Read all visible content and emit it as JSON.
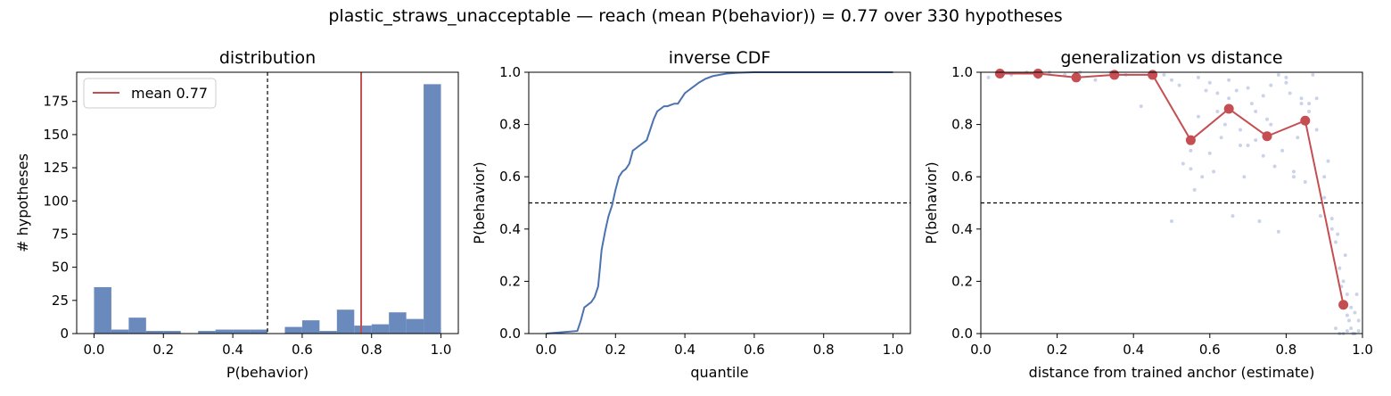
{
  "figure": {
    "suptitle": "plastic_straws_unacceptable  —  reach (mean P(behavior)) = 0.77  over 330 hypotheses"
  },
  "colors": {
    "bar": "#6a89bd",
    "line": "#4c72b0",
    "mean": "#c44e52",
    "scatter": "#b8c4e2",
    "reference": "#000000"
  },
  "chart_data": [
    {
      "type": "bar",
      "title": "distribution",
      "xlabel": "P(behavior)",
      "ylabel": "# hypotheses",
      "xlim": [
        -0.05,
        1.05
      ],
      "ylim": [
        0,
        197
      ],
      "xticks": [
        "0.0",
        "0.2",
        "0.4",
        "0.6",
        "0.8",
        "1.0"
      ],
      "xtick_values": [
        0,
        0.2,
        0.4,
        0.6,
        0.8,
        1.0
      ],
      "yticks": [
        "0",
        "25",
        "50",
        "75",
        "100",
        "125",
        "150",
        "175"
      ],
      "ytick_values": [
        0,
        25,
        50,
        75,
        100,
        125,
        150,
        175
      ],
      "bin_width": 0.05,
      "bin_starts": [
        0.0,
        0.05,
        0.1,
        0.15,
        0.2,
        0.25,
        0.3,
        0.35,
        0.4,
        0.45,
        0.5,
        0.55,
        0.6,
        0.65,
        0.7,
        0.75,
        0.8,
        0.85,
        0.9,
        0.95
      ],
      "values": [
        35,
        3,
        12,
        2,
        2,
        0,
        2,
        3,
        3,
        3,
        0,
        5,
        10,
        2,
        18,
        6,
        7,
        16,
        11,
        188
      ],
      "mean": 0.77,
      "mean_label": "mean 0.77",
      "threshold": 0.5,
      "legend_position": "upper left",
      "grid": false
    },
    {
      "type": "line",
      "title": "inverse CDF",
      "xlabel": "quantile",
      "ylabel": "P(behavior)",
      "xlim": [
        -0.05,
        1.05
      ],
      "ylim": [
        0,
        1
      ],
      "xticks": [
        "0.0",
        "0.2",
        "0.4",
        "0.6",
        "0.8",
        "1.0"
      ],
      "xtick_values": [
        0,
        0.2,
        0.4,
        0.6,
        0.8,
        1.0
      ],
      "yticks": [
        "0.0",
        "0.2",
        "0.4",
        "0.6",
        "0.8",
        "1.0"
      ],
      "ytick_values": [
        0,
        0.2,
        0.4,
        0.6,
        0.8,
        1.0
      ],
      "x": [
        0.0,
        0.09,
        0.1,
        0.11,
        0.12,
        0.13,
        0.14,
        0.15,
        0.155,
        0.16,
        0.17,
        0.175,
        0.18,
        0.19,
        0.2,
        0.21,
        0.22,
        0.23,
        0.24,
        0.25,
        0.26,
        0.27,
        0.28,
        0.29,
        0.3,
        0.31,
        0.32,
        0.33,
        0.34,
        0.35,
        0.36,
        0.37,
        0.38,
        0.39,
        0.4,
        0.41,
        0.42,
        0.43,
        0.44,
        0.46,
        0.48,
        0.5,
        0.52,
        0.55,
        0.6,
        0.7,
        0.8,
        0.9,
        1.0
      ],
      "y": [
        0.0,
        0.01,
        0.05,
        0.1,
        0.11,
        0.12,
        0.14,
        0.18,
        0.25,
        0.32,
        0.39,
        0.42,
        0.45,
        0.49,
        0.55,
        0.6,
        0.62,
        0.63,
        0.65,
        0.7,
        0.71,
        0.72,
        0.73,
        0.74,
        0.78,
        0.82,
        0.85,
        0.86,
        0.87,
        0.87,
        0.875,
        0.88,
        0.88,
        0.9,
        0.92,
        0.93,
        0.94,
        0.95,
        0.96,
        0.975,
        0.985,
        0.99,
        0.995,
        0.998,
        1.0,
        1.0,
        1.0,
        1.0,
        1.0
      ],
      "threshold": 0.5,
      "grid": false
    },
    {
      "type": "scatter",
      "title": "generalization vs distance",
      "xlabel": "distance from trained anchor (estimate)",
      "ylabel": "P(behavior)",
      "xlim": [
        0,
        1
      ],
      "ylim": [
        0,
        1
      ],
      "xticks": [
        "0.0",
        "0.2",
        "0.4",
        "0.6",
        "0.8",
        "1.0"
      ],
      "xtick_values": [
        0,
        0.2,
        0.4,
        0.6,
        0.8,
        1.0
      ],
      "yticks": [
        "0.0",
        "0.2",
        "0.4",
        "0.6",
        "0.8",
        "1.0"
      ],
      "ytick_values": [
        0,
        0.2,
        0.4,
        0.6,
        0.8,
        1.0
      ],
      "binned_means": {
        "x": [
          0.05,
          0.15,
          0.25,
          0.35,
          0.45,
          0.55,
          0.65,
          0.75,
          0.85,
          0.95
        ],
        "y": [
          0.995,
          0.995,
          0.98,
          0.99,
          0.99,
          0.74,
          0.86,
          0.755,
          0.815,
          0.11
        ]
      },
      "points": {
        "x": [
          0.02,
          0.05,
          0.08,
          0.12,
          0.15,
          0.18,
          0.22,
          0.26,
          0.3,
          0.34,
          0.38,
          0.42,
          0.45,
          0.48,
          0.5,
          0.52,
          0.53,
          0.55,
          0.56,
          0.57,
          0.58,
          0.6,
          0.61,
          0.62,
          0.63,
          0.64,
          0.65,
          0.66,
          0.67,
          0.68,
          0.69,
          0.7,
          0.71,
          0.72,
          0.73,
          0.74,
          0.75,
          0.76,
          0.77,
          0.78,
          0.79,
          0.8,
          0.81,
          0.82,
          0.83,
          0.84,
          0.85,
          0.86,
          0.87,
          0.88,
          0.89,
          0.9,
          0.91,
          0.92,
          0.93,
          0.94,
          0.95,
          0.96,
          0.97,
          0.98,
          0.99,
          0.93,
          0.94,
          0.95,
          0.96,
          0.97,
          0.98,
          0.95,
          0.96,
          0.92,
          0.945,
          0.955,
          0.965,
          0.975,
          0.935,
          0.985,
          0.57,
          0.59,
          0.62,
          0.65,
          0.7,
          0.74,
          0.78,
          0.8,
          0.84,
          0.88,
          0.5,
          0.55,
          0.6,
          0.68,
          0.72,
          0.76,
          0.82,
          0.86,
          0.9,
          0.99
        ],
        "y": [
          0.98,
          1.0,
          0.99,
          1.0,
          0.98,
          1.0,
          0.99,
          1.0,
          0.97,
          1.0,
          0.99,
          0.87,
          1.0,
          0.99,
          0.97,
          0.95,
          0.65,
          0.7,
          0.55,
          0.83,
          0.6,
          0.96,
          0.62,
          0.92,
          0.75,
          0.8,
          0.9,
          0.45,
          0.93,
          0.78,
          0.6,
          0.72,
          0.88,
          0.85,
          0.43,
          0.68,
          0.82,
          0.95,
          0.64,
          0.39,
          0.7,
          0.98,
          0.92,
          0.6,
          0.75,
          0.9,
          0.58,
          0.85,
          0.99,
          0.78,
          0.45,
          0.52,
          0.66,
          0.4,
          0.35,
          0.25,
          0.2,
          0.15,
          0.1,
          0.08,
          0.05,
          0.02,
          0.0,
          0.0,
          0.01,
          0.02,
          0.0,
          0.12,
          0.07,
          0.44,
          0.18,
          0.3,
          0.05,
          0.0,
          0.38,
          0.15,
          0.98,
          0.93,
          0.85,
          0.97,
          0.94,
          0.91,
          0.99,
          0.96,
          0.88,
          0.9,
          0.43,
          0.63,
          0.69,
          0.72,
          0.74,
          0.8,
          0.62,
          0.88,
          0.6,
          0.01
        ]
      },
      "threshold": 0.5,
      "grid": false
    }
  ]
}
